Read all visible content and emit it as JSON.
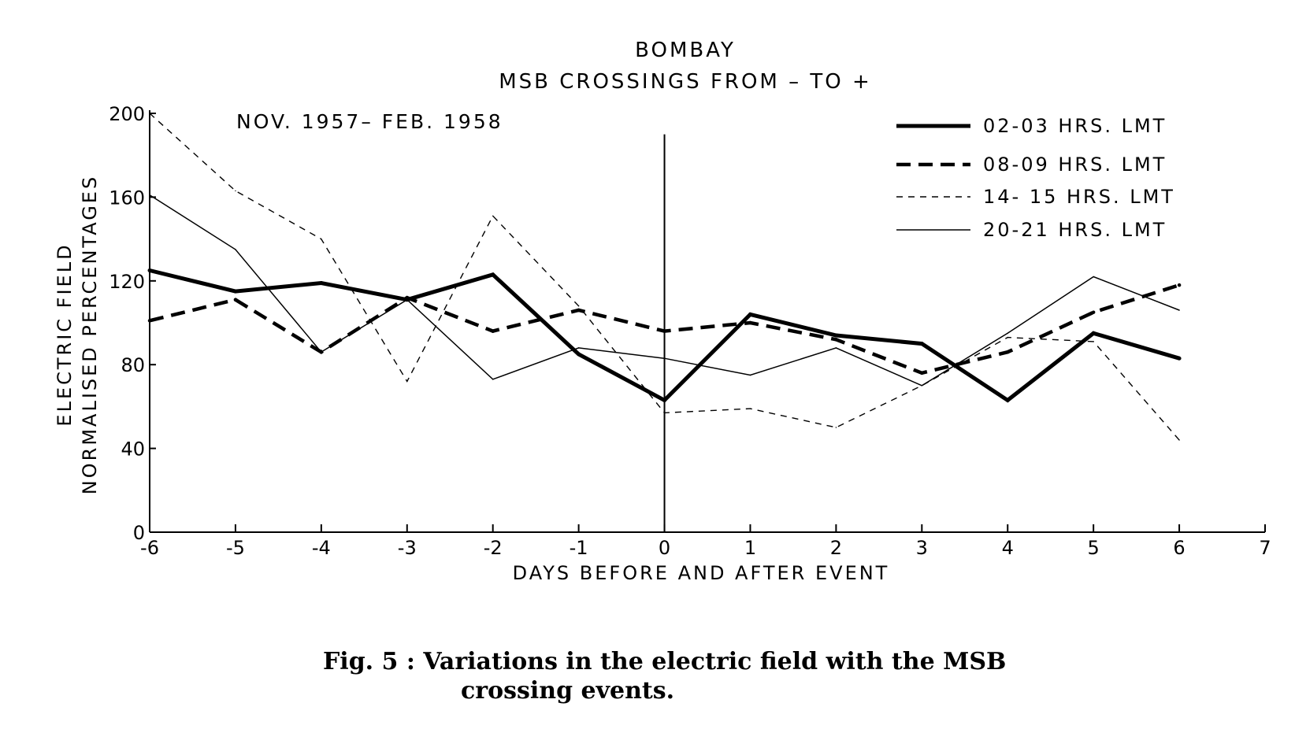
{
  "chart_data": {
    "type": "line",
    "title": "BOMBAY",
    "subtitle": "MSB CROSSINGS FROM – TO +",
    "annotation": "NOV. 1957– FEB. 1958",
    "xlabel": "DAYS BEFORE AND AFTER EVENT",
    "ylabel_line1": "ELECTRIC FIELD",
    "ylabel_line2": "NORMALISED PERCENTAGES",
    "xlim": [
      -6,
      7
    ],
    "ylim": [
      0,
      200
    ],
    "x_ticks": [
      -6,
      -5,
      -4,
      -3,
      -2,
      -1,
      0,
      1,
      2,
      3,
      4,
      5,
      6,
      7
    ],
    "x_tick_labels": [
      "-6",
      "-5",
      "-4",
      "-3",
      "-2",
      "-1",
      "0",
      "1",
      "2",
      "3",
      "4",
      "5",
      "6",
      "7"
    ],
    "y_ticks": [
      0,
      40,
      80,
      120,
      160,
      200
    ],
    "y_tick_labels": [
      "0",
      "40",
      "80",
      "120",
      "160",
      "200"
    ],
    "event_marker_x": 0,
    "grid": false,
    "legend_position": "top-right",
    "x": [
      -6,
      -5,
      -4,
      -3,
      -2,
      -1,
      0,
      1,
      2,
      3,
      4,
      5,
      6
    ],
    "series": [
      {
        "name": "02-03  HRS. LMT",
        "style": "thick-solid",
        "values": [
          125,
          115,
          119,
          111,
          123,
          85,
          63,
          104,
          94,
          90,
          63,
          95,
          83
        ]
      },
      {
        "name": "08-09  HRS. LMT",
        "style": "thick-dashed",
        "values": [
          101,
          111,
          86,
          112,
          96,
          106,
          96,
          100,
          92,
          76,
          86,
          105,
          118
        ]
      },
      {
        "name": "14- 15  HRS. LMT",
        "style": "thin-dashed",
        "values": [
          200,
          163,
          140,
          72,
          151,
          108,
          57,
          59,
          50,
          70,
          93,
          91,
          44
        ]
      },
      {
        "name": "20-21  HRS. LMT",
        "style": "thin-solid",
        "values": [
          161,
          135,
          86,
          111,
          73,
          88,
          83,
          75,
          88,
          70,
          95,
          122,
          106
        ]
      }
    ]
  },
  "caption": {
    "line1": "Fig. 5 : Variations in the electric field with the MSB",
    "line2": "crossing events."
  }
}
